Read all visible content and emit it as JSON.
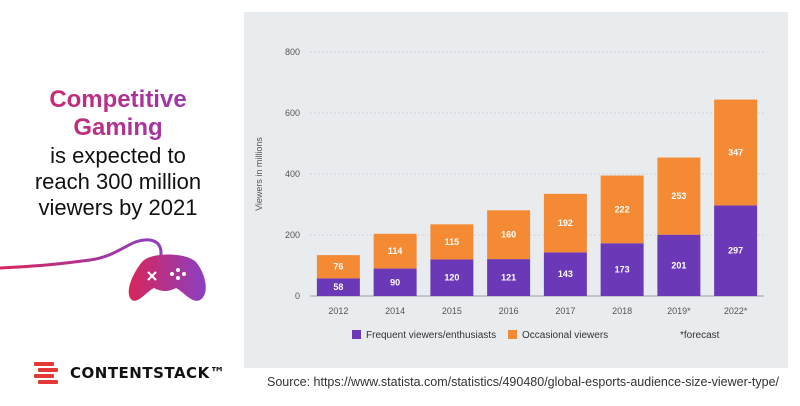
{
  "headline": {
    "line1": "Competitive",
    "line2": "Gaming",
    "line3": "is expected to",
    "line4": "reach 300 million",
    "line5": "viewers by 2021"
  },
  "brand": {
    "name": "CONTENTSTACK™"
  },
  "source": "Source: https://www.statista.com/statistics/490480/global-esports-audience-size-viewer-type/",
  "colors": {
    "frequent": "#6b39b8",
    "occasional": "#f58a34",
    "panel": "#e9ecef"
  },
  "chart_data": {
    "type": "bar",
    "stacked": true,
    "categories": [
      "2012",
      "2014",
      "2015",
      "2016",
      "2017",
      "2018",
      "2019*",
      "2022*"
    ],
    "series": [
      {
        "name": "Frequent viewers/enthusiasts",
        "values": [
          58,
          90,
          120,
          121,
          143,
          173,
          201,
          297
        ]
      },
      {
        "name": "Occasional viewers",
        "values": [
          76,
          114,
          115,
          160,
          192,
          222,
          253,
          347
        ]
      }
    ],
    "ylabel": "Viewers in millions",
    "ylim": [
      0,
      800
    ],
    "yticks": [
      0,
      200,
      400,
      600,
      800
    ],
    "grid": true,
    "legend_position": "bottom",
    "note": "*forecast"
  }
}
